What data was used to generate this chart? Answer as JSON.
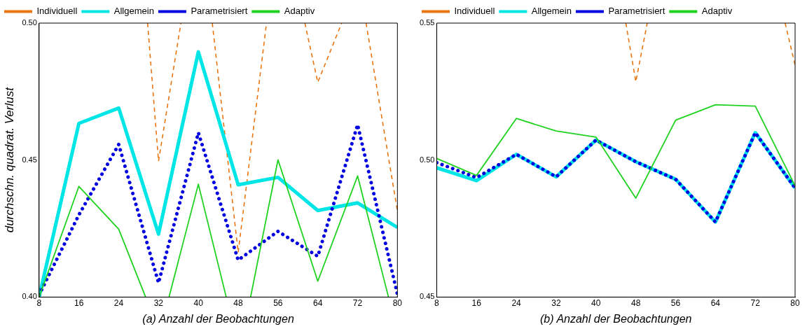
{
  "chart_data": [
    {
      "type": "line",
      "xlabel": "(a) Anzahl der Beobachtungen",
      "ylabel": "durchschn. quadrat. Verlust",
      "x": [
        8,
        16,
        24,
        32,
        40,
        48,
        56,
        64,
        72,
        80
      ],
      "xlim": [
        8,
        80
      ],
      "xticks": [
        8,
        16,
        24,
        32,
        40,
        48,
        56,
        64,
        72,
        80
      ],
      "ylim": [
        0.4,
        0.5
      ],
      "yticks": [
        {
          "value": 0.4,
          "label": "0.40"
        },
        {
          "value": 0.45,
          "label": "0.45"
        },
        {
          "value": 0.5,
          "label": "0.50"
        }
      ],
      "grid": false,
      "legend": "top left",
      "marker": "none",
      "series": [
        {
          "name": "Individuell",
          "color": "#e87511",
          "line_style": "dashed",
          "x": [
            29.8,
            32,
            36.5,
            39.5,
            42.8,
            48,
            53.7,
            57.5,
            61.4,
            64,
            68.8,
            71.5,
            73.7,
            80
          ],
          "values": [
            0.5,
            0.4496,
            0.5,
            null,
            0.5,
            0.4163,
            0.5,
            null,
            0.5,
            0.4784,
            0.5,
            null,
            0.5,
            0.4314
          ]
        },
        {
          "name": "Allgemein",
          "color": "#00e5e5",
          "line_style": "solid",
          "values": [
            0.4,
            0.4634,
            0.469,
            0.423,
            0.4895,
            0.441,
            0.4437,
            0.4316,
            0.4344,
            0.4254
          ]
        },
        {
          "name": "Parametrisiert",
          "color": "#0000e0",
          "line_style": "dotted",
          "values": [
            0.4008,
            0.43,
            0.4557,
            0.4052,
            0.46,
            0.4135,
            0.424,
            0.4149,
            0.4629,
            0.401
          ]
        },
        {
          "name": "Adaptiv",
          "color": "#1fd21f",
          "line_style": "solid",
          "x": [
            8,
            16,
            24,
            29.4,
            31.7,
            34.1,
            40,
            45.6,
            48,
            50.5,
            56,
            64,
            72,
            78.2
          ],
          "values": [
            0.4,
            0.4404,
            0.4248,
            0.4,
            null,
            0.4,
            0.4412,
            0.4,
            null,
            0.4,
            0.4501,
            0.4058,
            0.4442,
            0.4
          ]
        }
      ]
    },
    {
      "type": "line",
      "xlabel": "(b) Anzahl der Beobachtungen",
      "x": [
        8,
        16,
        24,
        32,
        40,
        48,
        56,
        64,
        72,
        80
      ],
      "xlim": [
        8,
        80
      ],
      "xticks": [
        8,
        16,
        24,
        32,
        40,
        48,
        56,
        64,
        72,
        80
      ],
      "ylim": [
        0.45,
        0.55
      ],
      "yticks": [
        {
          "value": 0.45,
          "label": "0.45"
        },
        {
          "value": 0.5,
          "label": "0.50"
        },
        {
          "value": 0.55,
          "label": "0.55"
        }
      ],
      "grid": false,
      "legend": "top left",
      "marker": "none",
      "series": [
        {
          "name": "Individuell",
          "color": "#e87511",
          "line_style": "dashed",
          "x": [
            46,
            48,
            50.3,
            64,
            78,
            80
          ],
          "values": [
            0.55,
            0.5286,
            0.55,
            null,
            0.55,
            0.5347
          ]
        },
        {
          "name": "Allgemein",
          "color": "#00e5e5",
          "line_style": "solid",
          "values": [
            0.4972,
            0.4925,
            0.5021,
            0.4939,
            0.5073,
            0.4994,
            0.493,
            0.4774,
            0.51,
            0.4898
          ]
        },
        {
          "name": "Parametrisiert",
          "color": "#0000e0",
          "line_style": "dotted",
          "values": [
            0.4991,
            0.4936,
            0.5021,
            0.4939,
            0.5073,
            0.4994,
            0.493,
            0.4774,
            0.51,
            0.4898
          ]
        },
        {
          "name": "Adaptiv",
          "color": "#1fd21f",
          "line_style": "solid",
          "values": [
            0.5006,
            0.4944,
            0.5152,
            0.5106,
            0.5084,
            0.4861,
            0.5146,
            0.5202,
            0.5197,
            0.4906
          ]
        }
      ]
    }
  ]
}
